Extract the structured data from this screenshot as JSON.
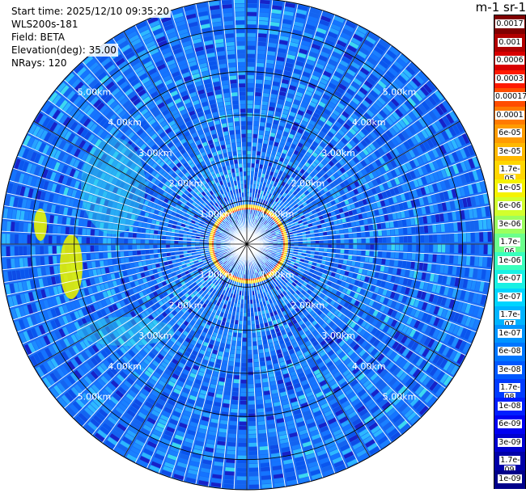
{
  "header": {
    "start_time": "Start time: 2025/12/10 09:35:20",
    "instrument": "WLS200s-181",
    "field": "Field: BETA",
    "elevation": "Elevation(deg): 35.00",
    "nrays": "NRays: 120"
  },
  "colorbar": {
    "title": "m-1 sr-1",
    "labels": [
      "0.0017",
      "0.001",
      "0.0006",
      "0.0003",
      "0.00017",
      "0.0001",
      "6e-05",
      "3e-05",
      "1.7e-05",
      "1e-05",
      "6e-06",
      "3e-06",
      "1.7e-06",
      "1e-06",
      "6e-07",
      "3e-07",
      "1.7e-07",
      "1e-07",
      "6e-08",
      "3e-08",
      "1.7e-08",
      "1e-08",
      "6e-09",
      "3e-09",
      "1.7e-09",
      "1e-09"
    ],
    "colors": [
      "#7f0000",
      "#b00000",
      "#d90000",
      "#ff1a00",
      "#ff4d00",
      "#ff7a00",
      "#ff9b00",
      "#ffb800",
      "#ffd600",
      "#f5f200",
      "#d2ff2d",
      "#9bff5e",
      "#6bff8c",
      "#39ffbd",
      "#18f0e4",
      "#00d4ff",
      "#00b4ff",
      "#0094ff",
      "#0076ff",
      "#0058ff",
      "#003bff",
      "#001eff",
      "#0000f2",
      "#0000cf",
      "#0000a8",
      "#00008a"
    ]
  },
  "plot": {
    "range_labels": [
      "1.00km",
      "2.00km",
      "3.00km",
      "4.00km",
      "5.00km"
    ],
    "rings_km": [
      1,
      2,
      3,
      4,
      5
    ],
    "max_range_km": 5.7,
    "nrays": 120
  }
}
